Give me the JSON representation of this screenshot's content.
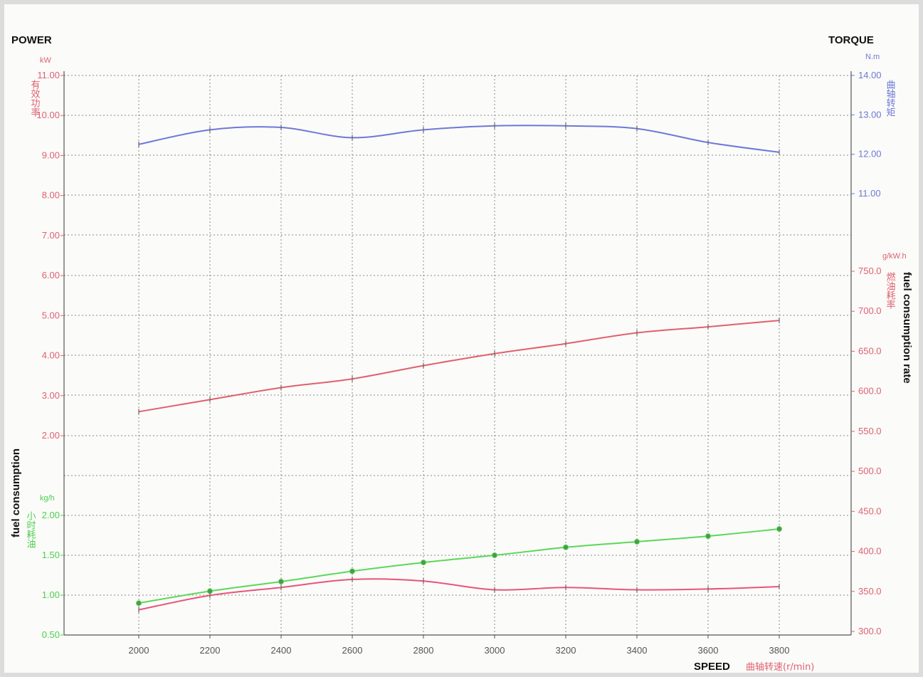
{
  "chart_data": {
    "type": "line",
    "labels": {
      "power": "POWER",
      "torque": "TORQUE",
      "fuel_consumption": "fuel consumption",
      "fuel_consumption_rate": "fuel consumption rate",
      "speed": "SPEED",
      "speed_cn": "曲轴转速(r/min)"
    },
    "units": {
      "power": "kW",
      "torque": "N.m",
      "fuel_rate": "g/kW.h",
      "fuel": "kg/h"
    },
    "cn_labels": {
      "power": "有效功率",
      "torque": "曲轴转矩",
      "fuel_rate": "燃油耗率",
      "fuel": "小时耗油"
    },
    "x": [
      2000,
      2200,
      2400,
      2600,
      2800,
      3000,
      3200,
      3400,
      3600,
      3800
    ],
    "x_ticks": [
      "2000",
      "2200",
      "2400",
      "2600",
      "2800",
      "3000",
      "3200",
      "3400",
      "3600",
      "3800"
    ],
    "axes": {
      "power": {
        "range": [
          2.0,
          11.0
        ],
        "ticks": [
          "11.00",
          "10.00",
          "9.00",
          "8.00",
          "7.00",
          "6.00",
          "5.00",
          "4.00",
          "3.00",
          "2.00"
        ]
      },
      "fuel": {
        "range": [
          0.5,
          2.0
        ],
        "ticks": [
          "2.00",
          "1.50",
          "1.00",
          "0.50"
        ]
      },
      "torque": {
        "range": [
          11.0,
          14.0
        ],
        "ticks": [
          "14.00",
          "13.00",
          "12.00",
          "11.00"
        ]
      },
      "fuel_rate": {
        "range": [
          300.0,
          750.0
        ],
        "ticks": [
          "750.0",
          "700.0",
          "650.0",
          "600.0",
          "550.0",
          "500.0",
          "450.0",
          "400.0",
          "350.0",
          "300.0"
        ]
      }
    },
    "series": [
      {
        "key": "torque",
        "axis": "torque",
        "color": "#6e78d8",
        "values": [
          12.25,
          12.62,
          12.68,
          12.42,
          12.62,
          12.72,
          12.72,
          12.65,
          12.3,
          12.05
        ]
      },
      {
        "key": "power",
        "axis": "power",
        "color": "#e0606e",
        "values": [
          2.6,
          2.9,
          3.2,
          3.42,
          3.75,
          4.05,
          4.3,
          4.57,
          4.72,
          4.88
        ]
      },
      {
        "key": "fuel",
        "axis": "fuel",
        "color": "#5ad85a",
        "values": [
          0.9,
          1.05,
          1.17,
          1.3,
          1.41,
          1.5,
          1.6,
          1.67,
          1.74,
          1.83
        ]
      },
      {
        "key": "fuel_rate",
        "axis": "fuel_rate",
        "color": "#e8547a",
        "values": [
          327,
          345,
          355,
          365,
          363,
          352,
          355,
          352,
          353,
          356
        ]
      }
    ],
    "grid": true
  }
}
